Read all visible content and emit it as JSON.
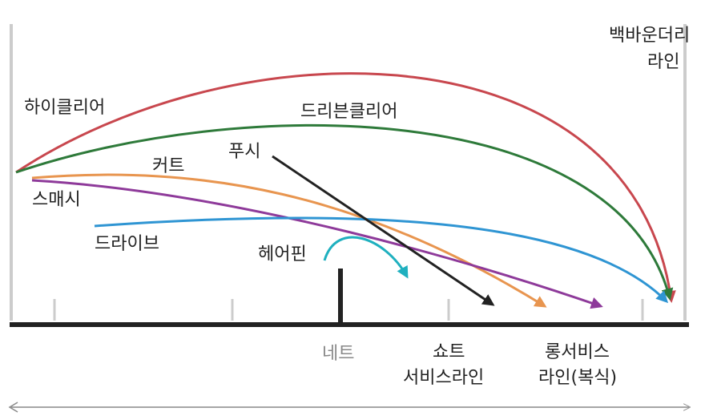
{
  "back_boundary": [
    "백바운더리",
    "라인"
  ],
  "shots": {
    "high_clear": "하이클리어",
    "driven_clear": "드리븐클리어",
    "cut": "커트",
    "push": "푸시",
    "smash": "스매시",
    "drive": "드라이브",
    "hairpin": "헤어핀"
  },
  "net": "네트",
  "short_service_line": [
    "쇼트",
    "서비스라인"
  ],
  "long_service_line": [
    "롱서비스",
    "라인(복식)"
  ]
}
